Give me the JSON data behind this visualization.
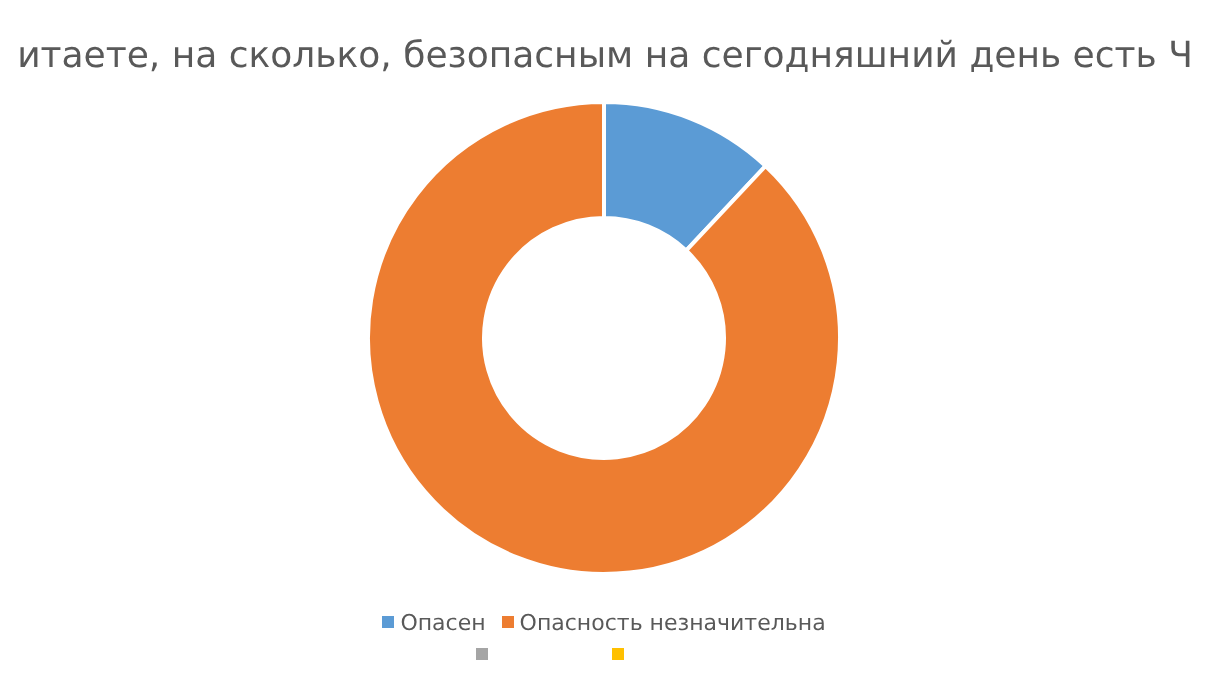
{
  "chart_data": {
    "type": "donut",
    "title": "итаете, на сколько, безопасным на сегодняшний день есть Ч",
    "categories": [
      "Опасен",
      "Опасность незначительна",
      null,
      null
    ],
    "values": [
      12,
      88,
      0,
      0
    ],
    "colors": [
      "#5b9bd5",
      "#ed7d31",
      "#a5a5a5",
      "#ffc000"
    ],
    "legend": "bottom"
  }
}
